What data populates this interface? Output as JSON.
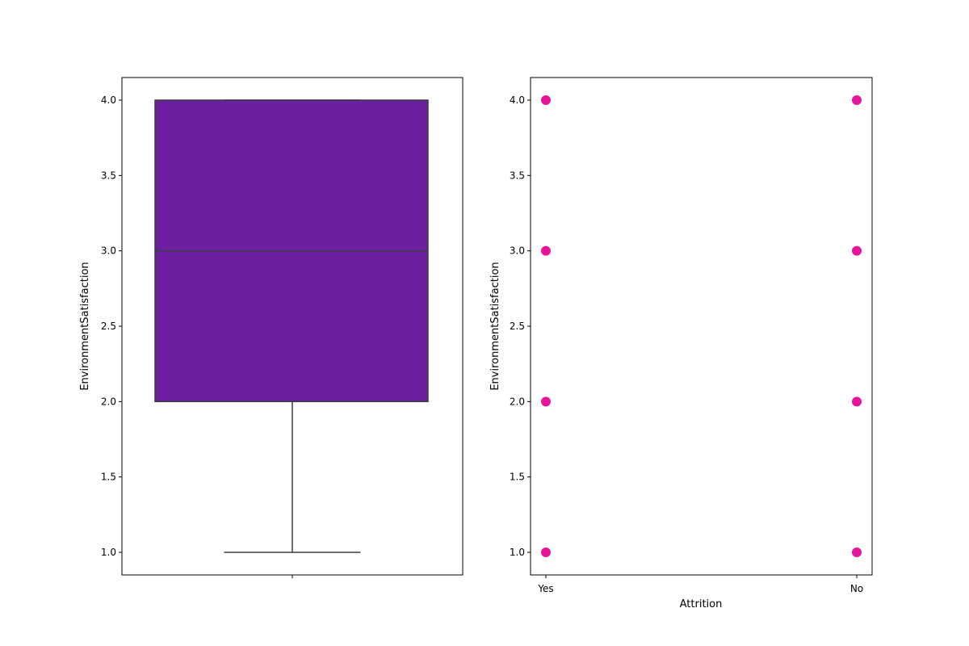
{
  "chart_data": [
    {
      "type": "box",
      "title": "",
      "xlabel": "",
      "ylabel": "EnvironmentSatisfaction",
      "ylim": [
        0.85,
        4.15
      ],
      "yticks": [
        "1.0",
        "1.5",
        "2.0",
        "2.5",
        "3.0",
        "3.5",
        "4.0"
      ],
      "categories": [
        ""
      ],
      "box": {
        "min": 1.0,
        "q1": 2.0,
        "median": 3.0,
        "q3": 4.0,
        "max": 4.0
      },
      "colors": {
        "box_fill": "#6c1fa1",
        "box_edge": "#3d3d3d"
      },
      "grid": false
    },
    {
      "type": "scatter",
      "title": "",
      "xlabel": "Attrition",
      "ylabel": "EnvironmentSatisfaction",
      "ylim": [
        0.85,
        4.15
      ],
      "yticks": [
        "1.0",
        "1.5",
        "2.0",
        "2.5",
        "3.0",
        "3.5",
        "4.0"
      ],
      "categories": [
        "Yes",
        "No"
      ],
      "points": [
        {
          "x": "Yes",
          "y": 4.0
        },
        {
          "x": "Yes",
          "y": 3.0
        },
        {
          "x": "Yes",
          "y": 2.0
        },
        {
          "x": "Yes",
          "y": 1.0
        },
        {
          "x": "No",
          "y": 4.0
        },
        {
          "x": "No",
          "y": 3.0
        },
        {
          "x": "No",
          "y": 2.0
        },
        {
          "x": "No",
          "y": 1.0
        }
      ],
      "colors": {
        "point": "#e8149b"
      },
      "grid": false
    }
  ]
}
